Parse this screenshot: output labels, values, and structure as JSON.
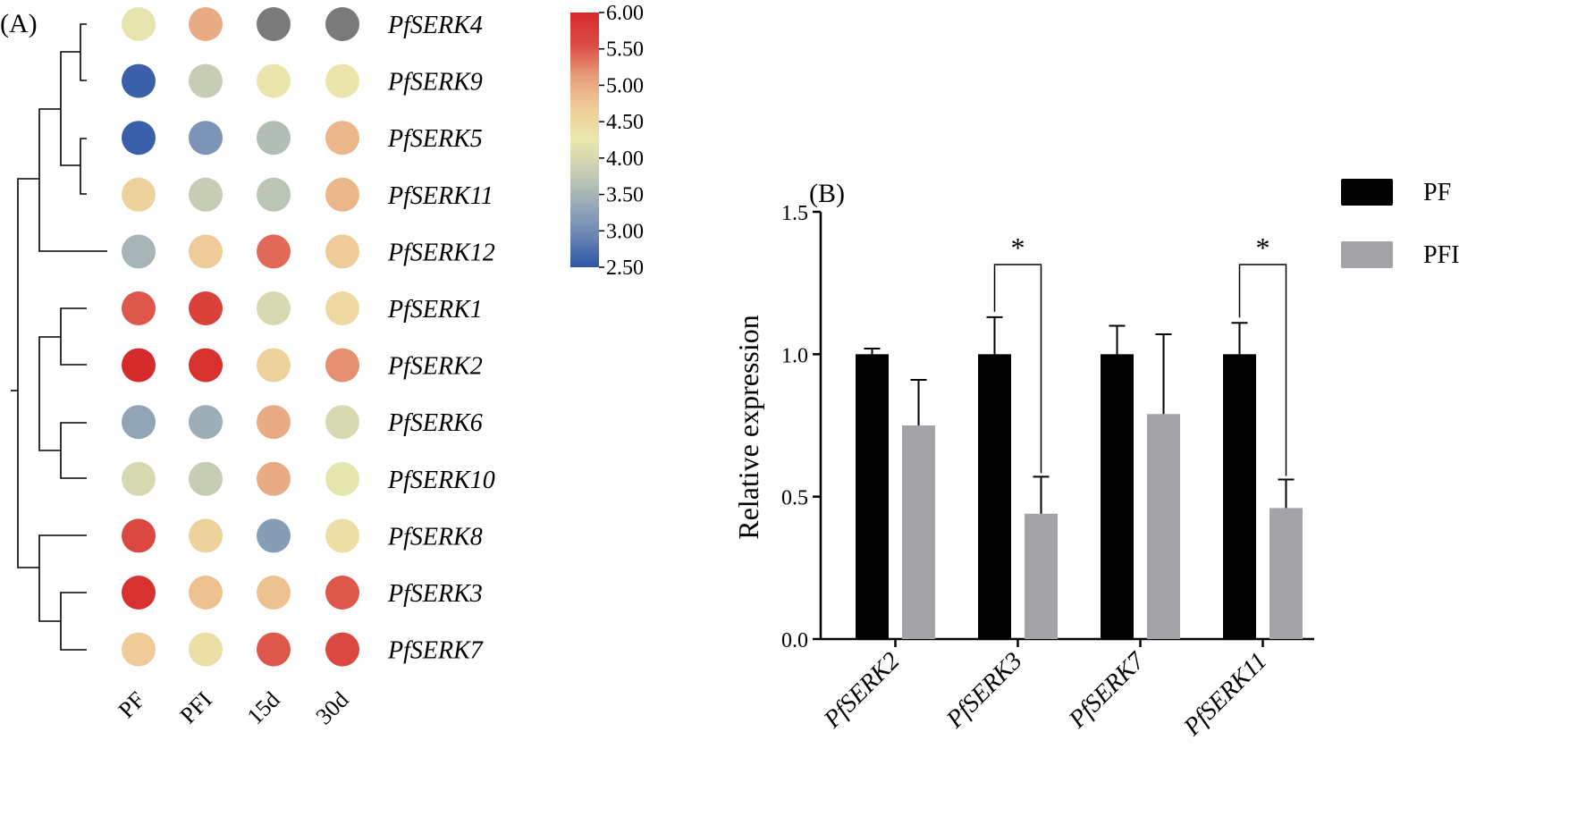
{
  "panels": {
    "a_label": "(A)",
    "b_label": "(B)"
  },
  "chart_data": [
    {
      "type": "heatmap",
      "panel": "(A)",
      "title": "",
      "columns": [
        "PF",
        "PFI",
        "15d",
        "30d"
      ],
      "rows": [
        "PfSERK4",
        "PfSERK9",
        "PfSERK5",
        "PfSERK11",
        "PfSERK12",
        "PfSERK1",
        "PfSERK2",
        "PfSERK6",
        "PfSERK10",
        "PfSERK8",
        "PfSERK3",
        "PfSERK7"
      ],
      "values": [
        [
          4.2,
          5.0,
          null,
          null
        ],
        [
          2.6,
          3.8,
          4.3,
          4.3
        ],
        [
          2.6,
          3.1,
          3.6,
          4.9
        ],
        [
          4.6,
          3.8,
          3.7,
          4.9
        ],
        [
          3.5,
          4.7,
          5.4,
          4.7
        ],
        [
          5.5,
          5.7,
          4.0,
          4.5
        ],
        [
          6.0,
          5.9,
          4.6,
          5.2
        ],
        [
          3.3,
          3.4,
          5.0,
          4.0
        ],
        [
          4.0,
          3.8,
          5.0,
          4.2
        ],
        [
          5.6,
          4.6,
          3.2,
          4.4
        ],
        [
          5.9,
          4.8,
          4.8,
          5.5
        ],
        [
          4.7,
          4.4,
          5.5,
          5.6
        ]
      ],
      "missing_color": "#7a7a7a",
      "colorbar": {
        "min": 2.5,
        "max": 6.0,
        "ticks": [
          "6.00",
          "5.50",
          "5.00",
          "4.50",
          "4.00",
          "3.50",
          "3.00",
          "2.50"
        ],
        "colors": [
          "#2c55a6",
          "#6b86b4",
          "#9aacb8",
          "#c8cdb4",
          "#eae8ad",
          "#efcd98",
          "#e69e7a",
          "#dc4b43",
          "#d52b2b"
        ]
      },
      "dendrogram": "hierarchical clustering of rows"
    },
    {
      "type": "bar",
      "panel": "(B)",
      "title": "",
      "xlabel": "",
      "ylabel": "Relative expression",
      "ylim": [
        0,
        1.5
      ],
      "yticks": [
        "0.0",
        "0.5",
        "1.0",
        "1.5"
      ],
      "categories": [
        "PfSERK2",
        "PfSERK3",
        "PfSERK7",
        "PfSERK11"
      ],
      "series": [
        {
          "name": "PF",
          "color": "#000000",
          "values": [
            1.0,
            1.0,
            1.0,
            1.0
          ],
          "errors": [
            0.02,
            0.13,
            0.1,
            0.11
          ]
        },
        {
          "name": "PFI",
          "color": "#a4a4a8",
          "values": [
            0.75,
            0.44,
            0.79,
            0.46
          ],
          "errors": [
            0.16,
            0.13,
            0.28,
            0.1
          ]
        }
      ],
      "significance": [
        {
          "category": "PfSERK3",
          "label": "*"
        },
        {
          "category": "PfSERK11",
          "label": "*"
        }
      ],
      "legend_position": "top-right"
    }
  ]
}
